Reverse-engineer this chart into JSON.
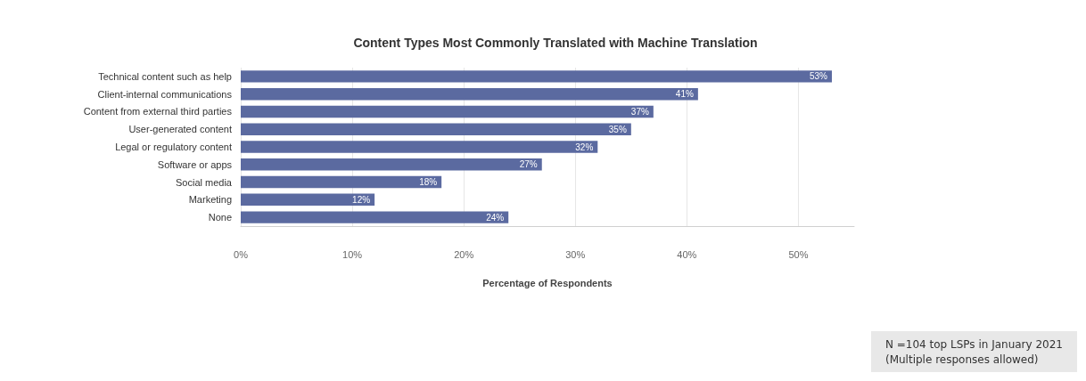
{
  "chart_data": {
    "type": "bar",
    "orientation": "horizontal",
    "title": "Content Types Most Commonly Translated with Machine Translation",
    "xlabel": "Percentage of Respondents",
    "categories": [
      "Technical content such as help",
      "Client-internal communications",
      "Content from external third parties",
      "User-generated content",
      "Legal or regulatory content",
      "Software or apps",
      "Social media",
      "Marketing",
      "None"
    ],
    "values": [
      53,
      41,
      37,
      35,
      32,
      27,
      18,
      12,
      24
    ],
    "value_labels": [
      "53%",
      "41%",
      "37%",
      "35%",
      "32%",
      "27%",
      "18%",
      "12%",
      "24%"
    ],
    "color": "#5b6aa0",
    "xlim": [
      0,
      55
    ],
    "xticks": [
      {
        "value": 0,
        "label": "0%"
      },
      {
        "value": 10,
        "label": "10%"
      },
      {
        "value": 20,
        "label": "20%"
      },
      {
        "value": 30,
        "label": "30%"
      },
      {
        "value": 40,
        "label": "40%"
      },
      {
        "value": 50,
        "label": "50%"
      }
    ],
    "grid": "x",
    "annotations": [
      "N =104 top LSPs in January 2021\n(Multiple responses allowed)"
    ]
  }
}
